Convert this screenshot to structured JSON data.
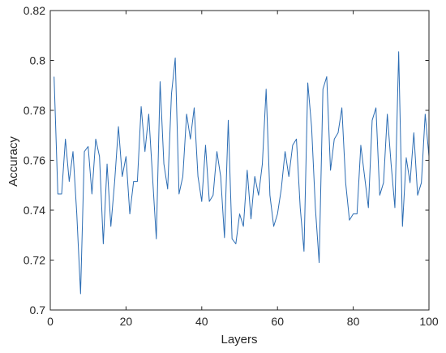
{
  "chart_data": {
    "type": "line",
    "title": "",
    "xlabel": "Layers",
    "ylabel": "Accuracy",
    "xlim": [
      0,
      100
    ],
    "ylim": [
      0.7,
      0.82
    ],
    "xticks": [
      0,
      20,
      40,
      60,
      80,
      100
    ],
    "yticks": [
      0.7,
      0.72,
      0.74,
      0.76,
      0.78,
      0.8,
      0.82
    ],
    "xtick_labels": [
      "0",
      "20",
      "40",
      "60",
      "80",
      "100"
    ],
    "ytick_labels": [
      "0.7",
      "0.72",
      "0.74",
      "0.76",
      "0.78",
      "0.8",
      "0.82"
    ],
    "grid": false,
    "box": true,
    "line_color": "#2b6cb3",
    "series": [
      {
        "x": [
          1,
          2,
          3,
          4,
          5,
          6,
          7,
          8,
          9,
          10,
          11,
          12,
          13,
          14,
          15,
          16,
          17,
          18,
          19,
          20,
          21,
          22,
          23,
          24,
          25,
          26,
          27,
          28,
          29,
          30,
          31,
          32,
          33,
          34,
          35,
          36,
          37,
          38,
          39,
          40,
          41,
          42,
          43,
          44,
          45,
          46,
          47,
          48,
          49,
          50,
          51,
          52,
          53,
          54,
          55,
          56,
          57,
          58,
          59,
          60,
          61,
          62,
          63,
          64,
          65,
          66,
          67,
          68,
          69,
          70,
          71,
          72,
          73,
          74,
          75,
          76,
          77,
          78,
          79,
          80,
          81,
          82,
          83,
          84,
          85,
          86,
          87,
          88,
          89,
          90,
          91,
          92,
          93,
          94,
          95,
          96,
          97,
          98,
          99,
          100
        ],
        "values": [
          0.7935,
          0.7465,
          0.7465,
          0.7685,
          0.7515,
          0.7635,
          0.7385,
          0.7065,
          0.7635,
          0.7655,
          0.7465,
          0.7685,
          0.7615,
          0.7265,
          0.7585,
          0.7335,
          0.7515,
          0.7735,
          0.7535,
          0.7615,
          0.7385,
          0.7515,
          0.7515,
          0.7815,
          0.7635,
          0.7785,
          0.7535,
          0.7285,
          0.7915,
          0.7585,
          0.7485,
          0.7865,
          0.801,
          0.7465,
          0.7535,
          0.7785,
          0.7685,
          0.781,
          0.7535,
          0.7435,
          0.766,
          0.7435,
          0.746,
          0.7635,
          0.7535,
          0.729,
          0.776,
          0.7285,
          0.7265,
          0.7385,
          0.7335,
          0.756,
          0.7365,
          0.7535,
          0.746,
          0.7585,
          0.7885,
          0.746,
          0.7335,
          0.7385,
          0.7485,
          0.7635,
          0.7535,
          0.766,
          0.7685,
          0.741,
          0.7235,
          0.791,
          0.7735,
          0.741,
          0.719,
          0.7885,
          0.7935,
          0.756,
          0.7685,
          0.771,
          0.781,
          0.751,
          0.736,
          0.7385,
          0.7385,
          0.766,
          0.7535,
          0.741,
          0.776,
          0.781,
          0.746,
          0.751,
          0.7785,
          0.7585,
          0.741,
          0.8035,
          0.7335,
          0.761,
          0.751,
          0.771,
          0.746,
          0.751,
          0.7785,
          0.7615
        ]
      }
    ]
  }
}
